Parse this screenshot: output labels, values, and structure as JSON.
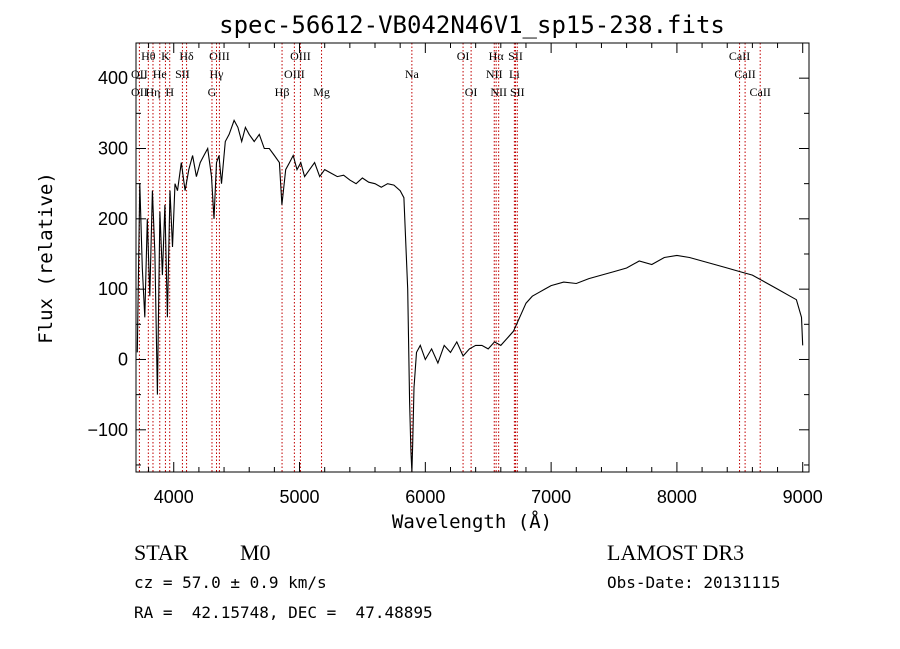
{
  "chart_data": {
    "type": "line",
    "title": "spec-56612-VB042N46V1_sp15-238.fits",
    "xlabel": "Wavelength (Å)",
    "ylabel": "Flux (relative)",
    "xlim": [
      3700,
      9050
    ],
    "ylim": [
      -160,
      450
    ],
    "xticks": [
      4000,
      5000,
      6000,
      7000,
      8000,
      9000
    ],
    "yticks": [
      -100,
      0,
      100,
      200,
      300,
      400
    ],
    "grid": false,
    "line_color": "#000000",
    "marker_color": "#c00000",
    "series": [
      {
        "x": [
          3710,
          3730,
          3750,
          3770,
          3790,
          3810,
          3830,
          3850,
          3870,
          3890,
          3910,
          3930,
          3950,
          3970,
          3990,
          4010,
          4030,
          4060,
          4090,
          4120,
          4150,
          4180,
          4210,
          4240,
          4270,
          4300,
          4320,
          4340,
          4360,
          4380,
          4410,
          4440,
          4460,
          4480,
          4510,
          4540,
          4570,
          4600,
          4640,
          4680,
          4720,
          4760,
          4800,
          4840,
          4860,
          4890,
          4920,
          4950,
          4980,
          5010,
          5040,
          5080,
          5120,
          5160,
          5200,
          5250,
          5300,
          5350,
          5400,
          5450,
          5500,
          5550,
          5600,
          5650,
          5700,
          5750,
          5800,
          5830,
          5860,
          5875,
          5885,
          5893,
          5900,
          5910,
          5930,
          5960,
          6000,
          6050,
          6100,
          6150,
          6200,
          6250,
          6300,
          6350,
          6400,
          6450,
          6500,
          6550,
          6600,
          6650,
          6700,
          6750,
          6800,
          6850,
          6900,
          6950,
          7000,
          7100,
          7200,
          7300,
          7400,
          7500,
          7600,
          7700,
          7800,
          7900,
          8000,
          8100,
          8200,
          8300,
          8400,
          8500,
          8600,
          8700,
          8800,
          8900,
          8950,
          8990,
          9000
        ],
        "y": [
          10,
          250,
          130,
          60,
          200,
          90,
          240,
          150,
          -50,
          210,
          120,
          220,
          60,
          240,
          160,
          250,
          240,
          280,
          240,
          270,
          290,
          260,
          280,
          290,
          300,
          260,
          200,
          280,
          290,
          250,
          310,
          320,
          330,
          340,
          330,
          310,
          330,
          320,
          310,
          320,
          300,
          300,
          290,
          280,
          220,
          270,
          280,
          290,
          270,
          280,
          260,
          270,
          280,
          260,
          270,
          265,
          260,
          262,
          255,
          250,
          258,
          252,
          250,
          245,
          250,
          248,
          240,
          230,
          100,
          -60,
          -130,
          -160,
          -120,
          -40,
          10,
          20,
          0,
          15,
          -5,
          20,
          10,
          25,
          5,
          15,
          20,
          20,
          15,
          25,
          20,
          30,
          40,
          60,
          80,
          90,
          95,
          100,
          105,
          110,
          108,
          115,
          120,
          125,
          130,
          140,
          135,
          145,
          148,
          145,
          140,
          135,
          130,
          125,
          120,
          110,
          100,
          90,
          85,
          60,
          20
        ]
      }
    ],
    "line_markers": {
      "top_row": [
        {
          "label": "Hθ",
          "x": 3798
        },
        {
          "label": "K",
          "x": 3934
        },
        {
          "label": "Hδ",
          "x": 4102
        },
        {
          "label": "OIII",
          "x": 4363
        },
        {
          "label": "OIII",
          "x": 5007
        },
        {
          "label": "OI",
          "x": 6300
        },
        {
          "label": "Hα",
          "x": 6563
        },
        {
          "label": "SII",
          "x": 6717
        },
        {
          "label": "CaII",
          "x": 8498
        }
      ],
      "middle_row": [
        {
          "label": "OII",
          "x": 3727
        },
        {
          "label": "He",
          "x": 3889
        },
        {
          "label": "SII",
          "x": 4069
        },
        {
          "label": "Hγ",
          "x": 4340
        },
        {
          "label": "OIII",
          "x": 4959
        },
        {
          "label": "Na",
          "x": 5893
        },
        {
          "label": "NII",
          "x": 6548
        },
        {
          "label": "Li",
          "x": 6708
        },
        {
          "label": "CaII",
          "x": 8542
        }
      ],
      "bottom_row": [
        {
          "label": "OII",
          "x": 3727
        },
        {
          "label": "Hη",
          "x": 3835
        },
        {
          "label": "H",
          "x": 3968
        },
        {
          "label": "G",
          "x": 4304
        },
        {
          "label": "Hβ",
          "x": 4861
        },
        {
          "label": "Mg",
          "x": 5175
        },
        {
          "label": "OI",
          "x": 6364
        },
        {
          "label": "NII",
          "x": 6583
        },
        {
          "label": "SII",
          "x": 6731
        },
        {
          "label": "CaII",
          "x": 8662
        }
      ]
    }
  },
  "info": {
    "class": "STAR",
    "subclass": "M0",
    "survey": "LAMOST DR3",
    "cz": "cz = 57.0 ± 0.9 km/s",
    "obs_date": "Obs-Date: 20131115",
    "coords": "RA =  42.15748, DEC =  47.48895"
  }
}
